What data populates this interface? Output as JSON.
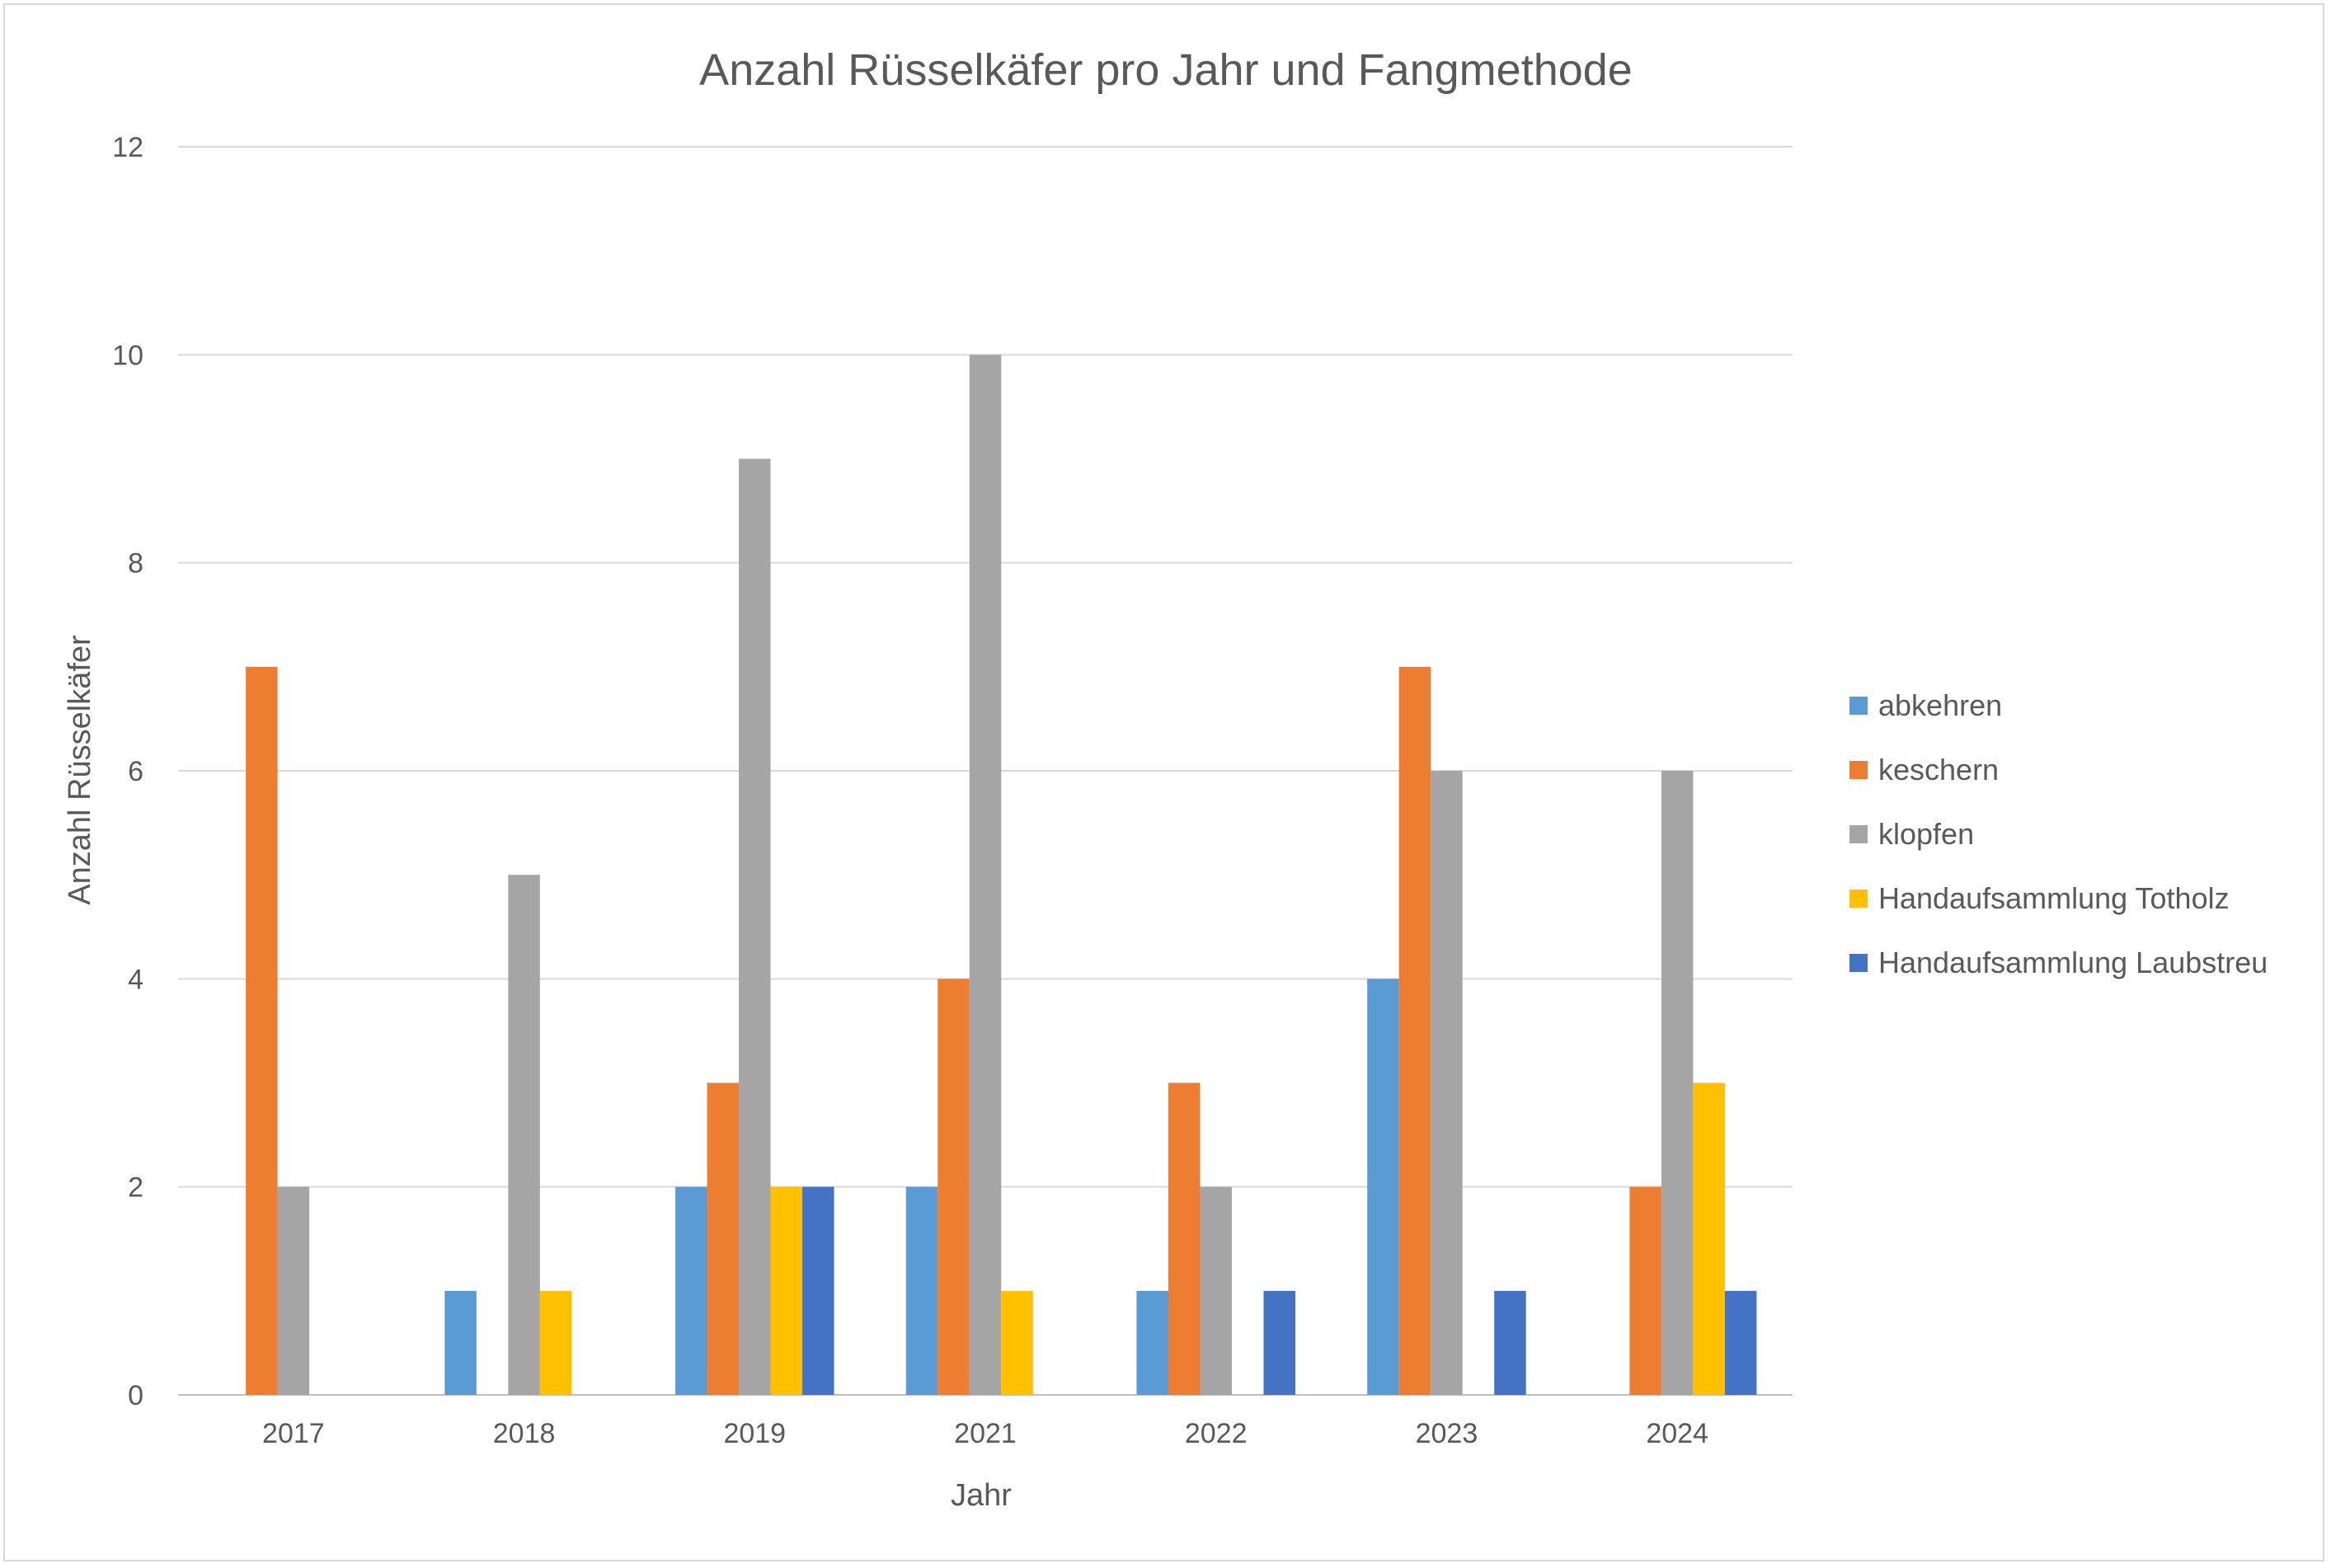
{
  "chart_data": {
    "type": "bar",
    "title": "Anzahl Rüsselkäfer pro Jahr und Fangmethode",
    "xlabel": "Jahr",
    "ylabel": "Anzahl Rüsselkäfer",
    "ylim": [
      0,
      12
    ],
    "yticks": [
      0,
      2,
      4,
      6,
      8,
      10,
      12
    ],
    "categories": [
      "2017",
      "2018",
      "2019",
      "2021",
      "2022",
      "2023",
      "2024"
    ],
    "grid": true,
    "legend_position": "right",
    "series": [
      {
        "name": "abkehren",
        "color": "#5B9BD5",
        "values": [
          0,
          1,
          2,
          2,
          1,
          4,
          0
        ]
      },
      {
        "name": "keschern",
        "color": "#ED7D31",
        "values": [
          7,
          0,
          3,
          4,
          3,
          7,
          2
        ]
      },
      {
        "name": "klopfen",
        "color": "#A5A5A5",
        "values": [
          2,
          5,
          9,
          10,
          2,
          6,
          6
        ]
      },
      {
        "name": "Handaufsammlung Totholz",
        "color": "#FFC000",
        "values": [
          0,
          1,
          2,
          1,
          0,
          0,
          3
        ]
      },
      {
        "name": "Handaufsammlung Laubstreu",
        "color": "#4472C4",
        "values": [
          0,
          0,
          2,
          0,
          1,
          1,
          1
        ]
      }
    ]
  }
}
